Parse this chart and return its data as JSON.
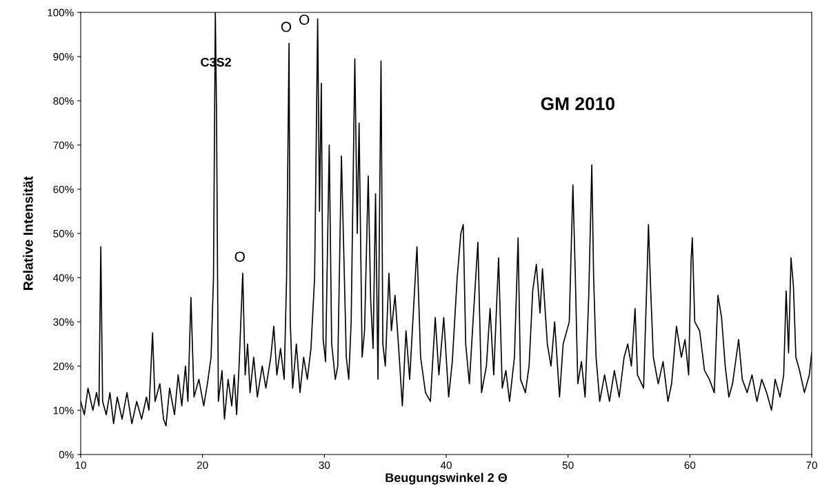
{
  "chart_data": {
    "type": "line",
    "xlabel": "Beugungswinkel 2 Θ",
    "ylabel": "Relative Intensität",
    "xlim": [
      10,
      70
    ],
    "xticks": [
      10,
      20,
      30,
      40,
      50,
      60,
      70
    ],
    "ylim": [
      0,
      100
    ],
    "yticks": [
      {
        "value": 0,
        "label": "0%"
      },
      {
        "value": 10,
        "label": "10%"
      },
      {
        "value": 20,
        "label": "20%"
      },
      {
        "value": 30,
        "label": "30%"
      },
      {
        "value": 40,
        "label": "40%"
      },
      {
        "value": 50,
        "label": "50%"
      },
      {
        "value": 60,
        "label": "60%"
      },
      {
        "value": 70,
        "label": "70%"
      },
      {
        "value": 80,
        "label": "80%"
      },
      {
        "value": 90,
        "label": "90%"
      },
      {
        "value": 100,
        "label": "100%"
      }
    ],
    "grid": false,
    "marker": "none",
    "line_style": "solid",
    "annotations": [
      {
        "text": "C3S2",
        "x": 21.1,
        "y": 88.5
      },
      {
        "text": "O",
        "x": 23.3,
        "y": 41
      },
      {
        "text": "O",
        "x": 27.1,
        "y": 93
      },
      {
        "text": "O",
        "x": 29.45,
        "y": 98.5
      },
      "GM 2010"
    ],
    "series": [
      {
        "color": "#000000",
        "x": [
          10,
          10.3,
          10.6,
          11.0,
          11.3,
          11.5,
          11.65,
          11.8,
          12.1,
          12.4,
          12.7,
          13.0,
          13.4,
          13.8,
          14.2,
          14.6,
          15.0,
          15.4,
          15.6,
          15.9,
          16.1,
          16.5,
          16.8,
          17.0,
          17.3,
          17.7,
          18.0,
          18.3,
          18.6,
          18.8,
          19.05,
          19.3,
          19.7,
          20.1,
          20.4,
          20.7,
          20.9,
          21.05,
          21.15,
          21.3,
          21.6,
          21.8,
          22.1,
          22.4,
          22.6,
          22.8,
          23.0,
          23.3,
          23.5,
          23.7,
          23.9,
          24.2,
          24.5,
          24.9,
          25.2,
          25.6,
          25.85,
          26.1,
          26.4,
          26.7,
          26.9,
          27.1,
          27.2,
          27.4,
          27.7,
          28.0,
          28.3,
          28.6,
          28.9,
          29.2,
          29.45,
          29.6,
          29.75,
          29.9,
          30.1,
          30.4,
          30.6,
          30.9,
          31.1,
          31.4,
          31.6,
          31.8,
          32.0,
          32.2,
          32.5,
          32.7,
          32.85,
          33.1,
          33.3,
          33.6,
          33.8,
          34.0,
          34.2,
          34.4,
          34.65,
          34.8,
          35.0,
          35.3,
          35.5,
          35.8,
          36.1,
          36.4,
          36.7,
          37.0,
          37.6,
          37.9,
          38.3,
          38.7,
          39.1,
          39.4,
          39.8,
          40.2,
          40.5,
          40.9,
          41.2,
          41.4,
          41.6,
          41.9,
          42.2,
          42.6,
          42.9,
          43.3,
          43.6,
          43.9,
          44.3,
          44.6,
          44.9,
          45.2,
          45.6,
          45.9,
          46.1,
          46.5,
          46.8,
          47.1,
          47.4,
          47.7,
          47.9,
          48.3,
          48.6,
          48.9,
          49.3,
          49.6,
          50.1,
          50.4,
          50.6,
          50.8,
          51.1,
          51.4,
          51.7,
          51.95,
          52.1,
          52.3,
          52.6,
          53.0,
          53.4,
          53.8,
          54.2,
          54.6,
          54.9,
          55.2,
          55.5,
          55.7,
          56.2,
          56.5,
          56.6,
          56.8,
          57.0,
          57.4,
          57.8,
          58.2,
          58.5,
          58.9,
          59.3,
          59.6,
          59.9,
          60.1,
          60.2,
          60.4,
          60.8,
          61.2,
          61.6,
          62.0,
          62.3,
          62.6,
          62.9,
          63.2,
          63.5,
          63.8,
          64.0,
          64.3,
          64.7,
          65.1,
          65.5,
          65.9,
          66.3,
          66.7,
          67.0,
          67.4,
          67.7,
          67.9,
          68.1,
          68.3,
          68.5,
          68.7,
          69.0,
          69.4,
          69.8,
          70.0
        ],
        "values": [
          12,
          9,
          15,
          10,
          14,
          11,
          47,
          12,
          9,
          14,
          7,
          13,
          8,
          14,
          7,
          12,
          8,
          13,
          10,
          27.5,
          12,
          16,
          8,
          6.5,
          15,
          9,
          18,
          11,
          20,
          12,
          35.5,
          13,
          17,
          11,
          16,
          22,
          40,
          100,
          77,
          12,
          19,
          8,
          17,
          11,
          18,
          9,
          20,
          41,
          18,
          25,
          14,
          22,
          13,
          20,
          15,
          22,
          29,
          18,
          24,
          17,
          40,
          93,
          30,
          15,
          25,
          14,
          22,
          17,
          24,
          40,
          98.5,
          55,
          84,
          26,
          21,
          70,
          25,
          17,
          20,
          67.5,
          45,
          22,
          17,
          30,
          89.5,
          50,
          75,
          22,
          28,
          63,
          35,
          24,
          59,
          17,
          89,
          25,
          20,
          41,
          28,
          36,
          24,
          11,
          28,
          17,
          47,
          22,
          14,
          12,
          31,
          18,
          31,
          13,
          21,
          40,
          50,
          52,
          25,
          16,
          30,
          48,
          14,
          20,
          33,
          18,
          44.5,
          15,
          19,
          12,
          22,
          49,
          17,
          14,
          20,
          37,
          43,
          32,
          42,
          25,
          20,
          30,
          13,
          25,
          30,
          61,
          40,
          16,
          21,
          13,
          36,
          65.5,
          40,
          22,
          12,
          18,
          12,
          19,
          13,
          22,
          25,
          20,
          33,
          18,
          15,
          42,
          52,
          36,
          22,
          16,
          21,
          12,
          16,
          29,
          22,
          26,
          18,
          44,
          49,
          30,
          28,
          19,
          17,
          14,
          36,
          31,
          20,
          13,
          16,
          22,
          26,
          17,
          14,
          18,
          12,
          17,
          14,
          10,
          17,
          13,
          18,
          37,
          23,
          44.5,
          38,
          22,
          19,
          14,
          18,
          23
        ]
      }
    ]
  }
}
